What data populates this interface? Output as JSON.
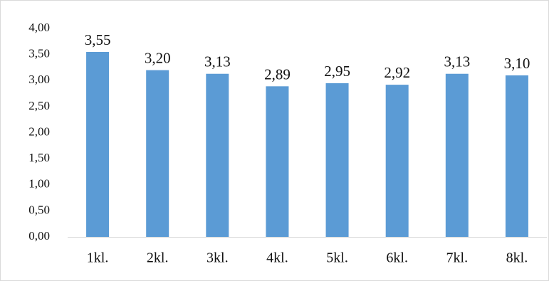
{
  "chart_data": {
    "type": "bar",
    "categories": [
      "1kl.",
      "2kl.",
      "3kl.",
      "4kl.",
      "5kl.",
      "6kl.",
      "7kl.",
      "8kl."
    ],
    "values": [
      3.55,
      3.2,
      3.13,
      2.89,
      2.95,
      2.92,
      3.13,
      3.1
    ],
    "value_labels": [
      "3,55",
      "3,20",
      "3,13",
      "2,89",
      "2,95",
      "2,92",
      "3,13",
      "3,10"
    ],
    "y_ticks": [
      "0,00",
      "0,50",
      "1,00",
      "1,50",
      "2,00",
      "2,50",
      "3,00",
      "3,50",
      "4,00"
    ],
    "ylim": [
      0,
      4
    ],
    "title": "",
    "xlabel": "",
    "ylabel": "",
    "grid": false,
    "legend": "none",
    "bar_color": "#5b9bd5",
    "axis_color": "#d9d9d9"
  }
}
